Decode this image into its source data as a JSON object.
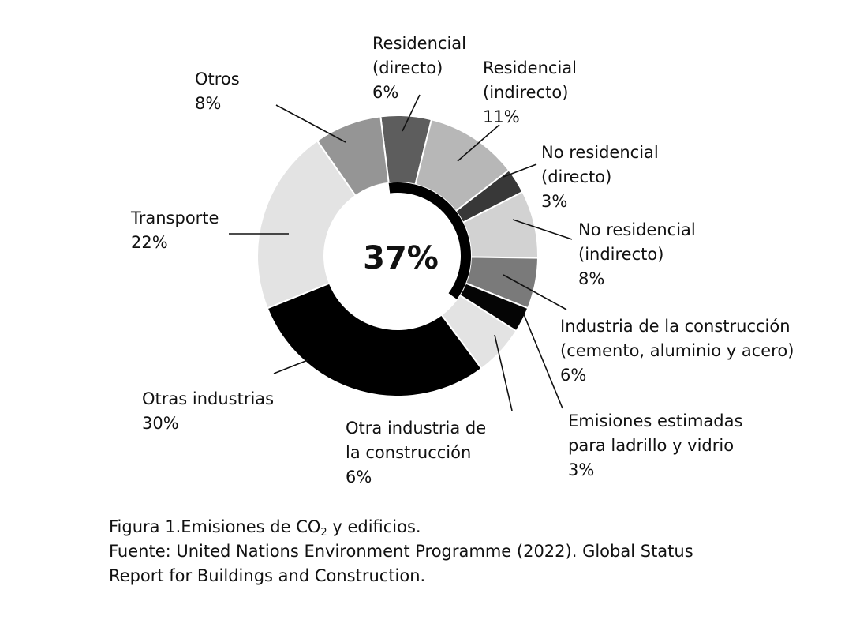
{
  "chart_data": {
    "type": "pie",
    "center_label": "37%",
    "slices": [
      {
        "name": "Residencial (directo)",
        "lines": [
          "Residencial",
          "(directo)",
          "6%"
        ],
        "value": 6,
        "color": "#5d5d5d"
      },
      {
        "name": "Residencial (indirecto)",
        "lines": [
          "Residencial",
          "(indirecto)",
          "11%"
        ],
        "value": 11,
        "color": "#b7b7b7"
      },
      {
        "name": "No residencial (directo)",
        "lines": [
          "No residencial",
          "(directo)",
          "3%"
        ],
        "value": 3,
        "color": "#383838"
      },
      {
        "name": "No residencial (indirecto)",
        "lines": [
          "No residencial",
          "(indirecto)",
          "8%"
        ],
        "value": 8,
        "color": "#d2d2d2"
      },
      {
        "name": "Industria de la construcción (cemento, aluminio y acero)",
        "lines": [
          "Industria de la construcción",
          "(cemento, aluminio y acero)",
          "6%"
        ],
        "value": 6,
        "color": "#7a7a7a"
      },
      {
        "name": "Emisiones estimadas para ladrillo y vidrio",
        "lines": [
          "Emisiones estimadas",
          "para ladrillo y vidrio",
          "3%"
        ],
        "value": 3,
        "color": "#050505"
      },
      {
        "name": "Otra industria de la construcción",
        "lines": [
          "Otra industria de",
          "la construcción",
          "6%"
        ],
        "value": 6,
        "color": "#e3e3e3"
      },
      {
        "name": "Otras industrias",
        "lines": [
          "Otras industrias",
          "30%"
        ],
        "value": 30,
        "color": "#000000"
      },
      {
        "name": "Transporte",
        "lines": [
          "Transporte",
          "22%"
        ],
        "value": 22,
        "color": "#e3e3e3"
      },
      {
        "name": "Otros",
        "lines": [
          "Otros",
          "8%"
        ],
        "value": 8,
        "color": "#959595"
      }
    ],
    "inner_ring": {
      "value": 37,
      "color": "#000000"
    }
  },
  "caption": {
    "line1_pre": "Figura 1.Emisiones de CO",
    "line1_sub": "2",
    "line1_post": " y edificios.",
    "line2": "Fuente: United Nations Environment Programme (2022). Global Status",
    "line3": "Report for Buildings and Construction."
  }
}
